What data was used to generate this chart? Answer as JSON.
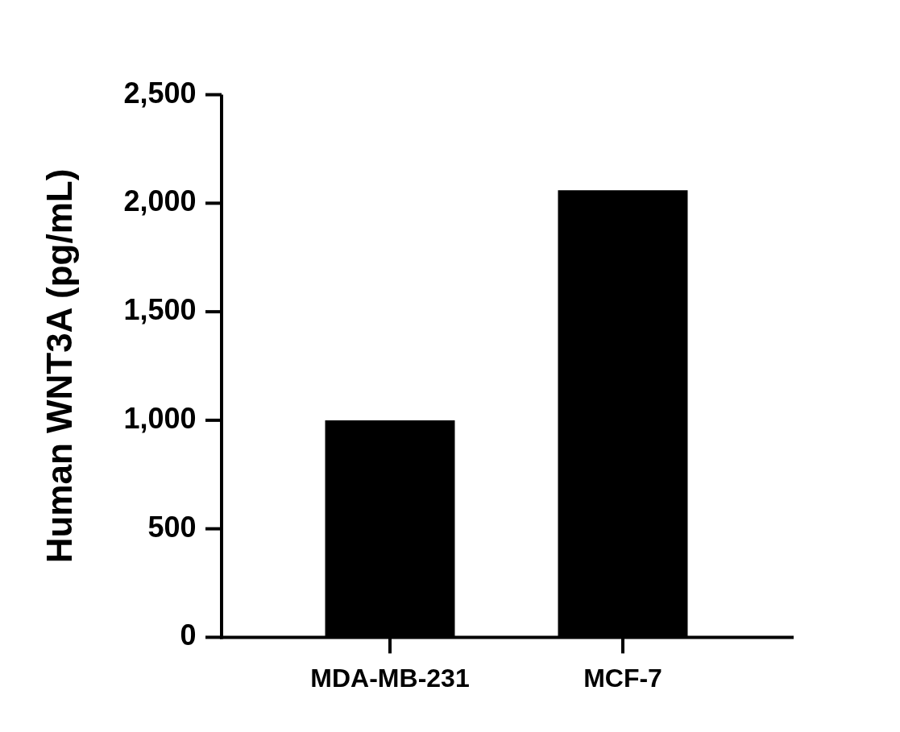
{
  "chart_data": {
    "type": "bar",
    "ylabel": "Human WNT3A (pg/mL)",
    "categories": [
      "MDA-MB-231",
      "MCF-7"
    ],
    "values": [
      1000,
      2060
    ],
    "color": "#000000",
    "ylim": [
      0,
      2500
    ],
    "yticks": [
      0,
      500,
      {
        "value": 1000,
        "label": "1,000"
      },
      {
        "value": 1500,
        "label": "1,500"
      },
      {
        "value": 2000,
        "label": "2,000"
      },
      {
        "value": 2500,
        "label": "2,500"
      }
    ],
    "grid": false,
    "legend": false
  }
}
